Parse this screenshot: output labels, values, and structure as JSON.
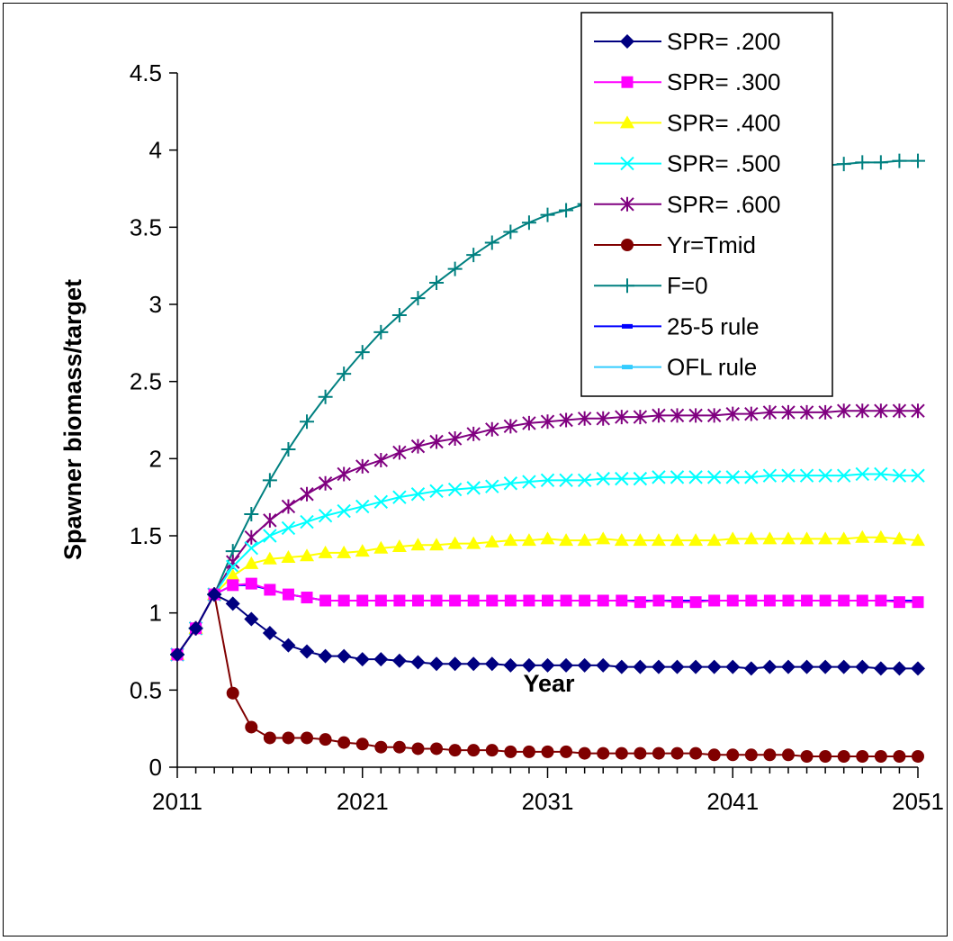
{
  "chart_data": {
    "type": "line",
    "title": "",
    "xlabel": "Year",
    "ylabel": "Spawner biomass/target",
    "xlim": [
      2011,
      2051
    ],
    "ylim": [
      0,
      4.5
    ],
    "x_ticks": [
      "2011",
      "2021",
      "2031",
      "2041",
      "2051"
    ],
    "y_ticks": [
      "0",
      "0.5",
      "1",
      "1.5",
      "2",
      "2.5",
      "3",
      "3.5",
      "4",
      "4.5"
    ],
    "grid": false,
    "legend_position": "top-right",
    "x": [
      2011,
      2012,
      2013,
      2014,
      2015,
      2016,
      2017,
      2018,
      2019,
      2020,
      2021,
      2022,
      2023,
      2024,
      2025,
      2026,
      2027,
      2028,
      2029,
      2030,
      2031,
      2032,
      2033,
      2034,
      2035,
      2036,
      2037,
      2038,
      2039,
      2040,
      2041,
      2042,
      2043,
      2044,
      2045,
      2046,
      2047,
      2048,
      2049,
      2050,
      2051
    ],
    "series": [
      {
        "name": "SPR= .200",
        "color": "#000080",
        "marker": "diamond",
        "values": [
          0.73,
          0.9,
          1.12,
          1.06,
          0.96,
          0.87,
          0.79,
          0.75,
          0.72,
          0.72,
          0.7,
          0.7,
          0.69,
          0.68,
          0.67,
          0.67,
          0.67,
          0.67,
          0.66,
          0.66,
          0.66,
          0.66,
          0.66,
          0.66,
          0.65,
          0.65,
          0.65,
          0.65,
          0.65,
          0.65,
          0.65,
          0.64,
          0.65,
          0.65,
          0.65,
          0.65,
          0.65,
          0.65,
          0.64,
          0.64,
          0.64
        ]
      },
      {
        "name": "SPR= .300",
        "color": "#FF00FF",
        "marker": "square",
        "values": [
          0.73,
          0.9,
          1.12,
          1.18,
          1.19,
          1.15,
          1.12,
          1.1,
          1.08,
          1.08,
          1.08,
          1.08,
          1.08,
          1.08,
          1.08,
          1.08,
          1.08,
          1.08,
          1.08,
          1.08,
          1.08,
          1.08,
          1.08,
          1.08,
          1.08,
          1.07,
          1.08,
          1.07,
          1.07,
          1.08,
          1.08,
          1.08,
          1.08,
          1.08,
          1.08,
          1.08,
          1.08,
          1.08,
          1.08,
          1.07,
          1.07
        ]
      },
      {
        "name": "SPR= .400",
        "color": "#FFFF00",
        "marker": "triangle",
        "values": [
          0.73,
          0.9,
          1.12,
          1.24,
          1.32,
          1.35,
          1.36,
          1.37,
          1.39,
          1.39,
          1.4,
          1.42,
          1.43,
          1.44,
          1.44,
          1.45,
          1.45,
          1.46,
          1.47,
          1.47,
          1.48,
          1.47,
          1.47,
          1.48,
          1.47,
          1.47,
          1.47,
          1.47,
          1.47,
          1.47,
          1.48,
          1.48,
          1.48,
          1.48,
          1.48,
          1.48,
          1.48,
          1.49,
          1.49,
          1.48,
          1.47
        ]
      },
      {
        "name": "SPR= .500",
        "color": "#00FFFF",
        "marker": "x",
        "values": [
          0.73,
          0.9,
          1.12,
          1.3,
          1.42,
          1.5,
          1.55,
          1.59,
          1.63,
          1.66,
          1.69,
          1.72,
          1.75,
          1.77,
          1.79,
          1.8,
          1.81,
          1.82,
          1.84,
          1.85,
          1.86,
          1.86,
          1.86,
          1.87,
          1.87,
          1.87,
          1.88,
          1.88,
          1.88,
          1.88,
          1.88,
          1.88,
          1.89,
          1.89,
          1.89,
          1.89,
          1.89,
          1.9,
          1.9,
          1.89,
          1.89
        ]
      },
      {
        "name": "SPR= .600",
        "color": "#800080",
        "marker": "star",
        "values": [
          0.73,
          0.9,
          1.12,
          1.33,
          1.49,
          1.6,
          1.69,
          1.77,
          1.84,
          1.9,
          1.95,
          1.99,
          2.04,
          2.08,
          2.11,
          2.13,
          2.16,
          2.19,
          2.21,
          2.23,
          2.24,
          2.25,
          2.26,
          2.26,
          2.27,
          2.27,
          2.28,
          2.28,
          2.28,
          2.28,
          2.29,
          2.29,
          2.3,
          2.3,
          2.3,
          2.3,
          2.31,
          2.31,
          2.31,
          2.31,
          2.31
        ]
      },
      {
        "name": "Yr=Tmid",
        "color": "#800000",
        "marker": "circle",
        "values": [
          0.73,
          0.9,
          1.12,
          0.48,
          0.26,
          0.19,
          0.19,
          0.19,
          0.18,
          0.16,
          0.15,
          0.13,
          0.13,
          0.12,
          0.12,
          0.11,
          0.11,
          0.11,
          0.1,
          0.1,
          0.1,
          0.1,
          0.09,
          0.09,
          0.09,
          0.09,
          0.09,
          0.09,
          0.09,
          0.08,
          0.08,
          0.08,
          0.08,
          0.08,
          0.07,
          0.07,
          0.07,
          0.07,
          0.07,
          0.07,
          0.07
        ]
      },
      {
        "name": "F=0",
        "color": "#008080",
        "marker": "plus",
        "values": [
          0.73,
          0.9,
          1.12,
          1.4,
          1.64,
          1.86,
          2.06,
          2.24,
          2.4,
          2.55,
          2.69,
          2.82,
          2.93,
          3.04,
          3.14,
          3.23,
          3.32,
          3.4,
          3.47,
          3.53,
          3.58,
          3.61,
          3.65,
          3.68,
          3.71,
          3.74,
          3.76,
          3.78,
          3.8,
          3.82,
          3.84,
          3.85,
          3.87,
          3.88,
          3.89,
          3.9,
          3.91,
          3.92,
          3.92,
          3.93,
          3.93
        ]
      },
      {
        "name": "25-5 rule",
        "color": "#0000FF",
        "marker": "dash",
        "values": [
          0.73,
          0.9,
          1.12,
          1.18,
          1.18,
          1.15,
          1.12,
          1.1,
          1.08,
          1.08,
          1.08,
          1.08,
          1.08,
          1.08,
          1.08,
          1.08,
          1.08,
          1.08,
          1.08,
          1.08,
          1.08,
          1.08,
          1.08,
          1.08,
          1.08,
          1.08,
          1.08,
          1.08,
          1.08,
          1.08,
          1.08,
          1.08,
          1.08,
          1.08,
          1.08,
          1.08,
          1.08,
          1.08,
          1.08,
          1.08,
          1.08
        ]
      },
      {
        "name": "OFL rule",
        "color": "#33CCFF",
        "marker": "dash",
        "values": [
          0.73,
          0.9,
          1.12,
          1.18,
          1.18,
          1.15,
          1.12,
          1.1,
          1.08,
          1.08,
          1.08,
          1.08,
          1.08,
          1.08,
          1.08,
          1.08,
          1.08,
          1.08,
          1.08,
          1.08,
          1.08,
          1.08,
          1.08,
          1.08,
          1.08,
          1.08,
          1.08,
          1.08,
          1.08,
          1.08,
          1.08,
          1.08,
          1.08,
          1.08,
          1.08,
          1.08,
          1.08,
          1.08,
          1.08,
          1.08,
          1.08
        ]
      }
    ]
  }
}
